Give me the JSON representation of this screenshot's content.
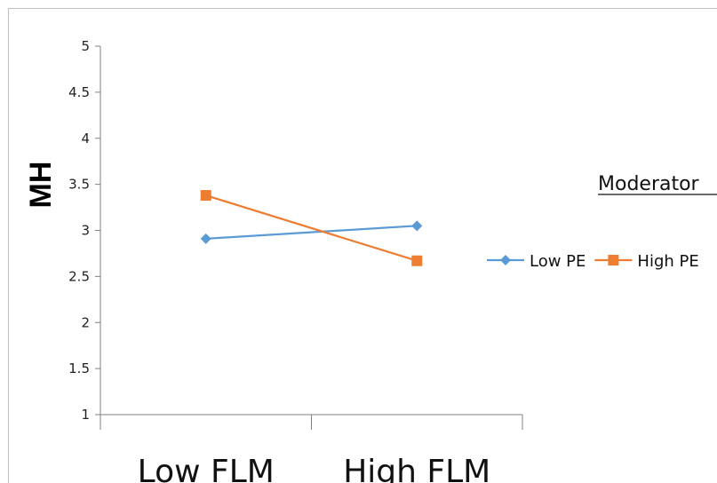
{
  "chart_data": {
    "type": "line",
    "categories": [
      "Low FLM",
      "High FLM"
    ],
    "series": [
      {
        "name": "Low PE",
        "values": [
          2.91,
          3.05
        ],
        "color": "#5B9BD5",
        "marker": "diamond"
      },
      {
        "name": "High PE",
        "values": [
          3.38,
          2.67
        ],
        "color": "#ED7D31",
        "marker": "square"
      }
    ],
    "title": "",
    "xlabel": "",
    "ylabel": "MH",
    "ylim": [
      1,
      5
    ],
    "yticks": [
      "1",
      "1.5",
      "2",
      "2.5",
      "3",
      "3.5",
      "4",
      "4.5",
      "5"
    ],
    "legend_title": "Moderator",
    "legend_position": "right",
    "grid": false
  }
}
